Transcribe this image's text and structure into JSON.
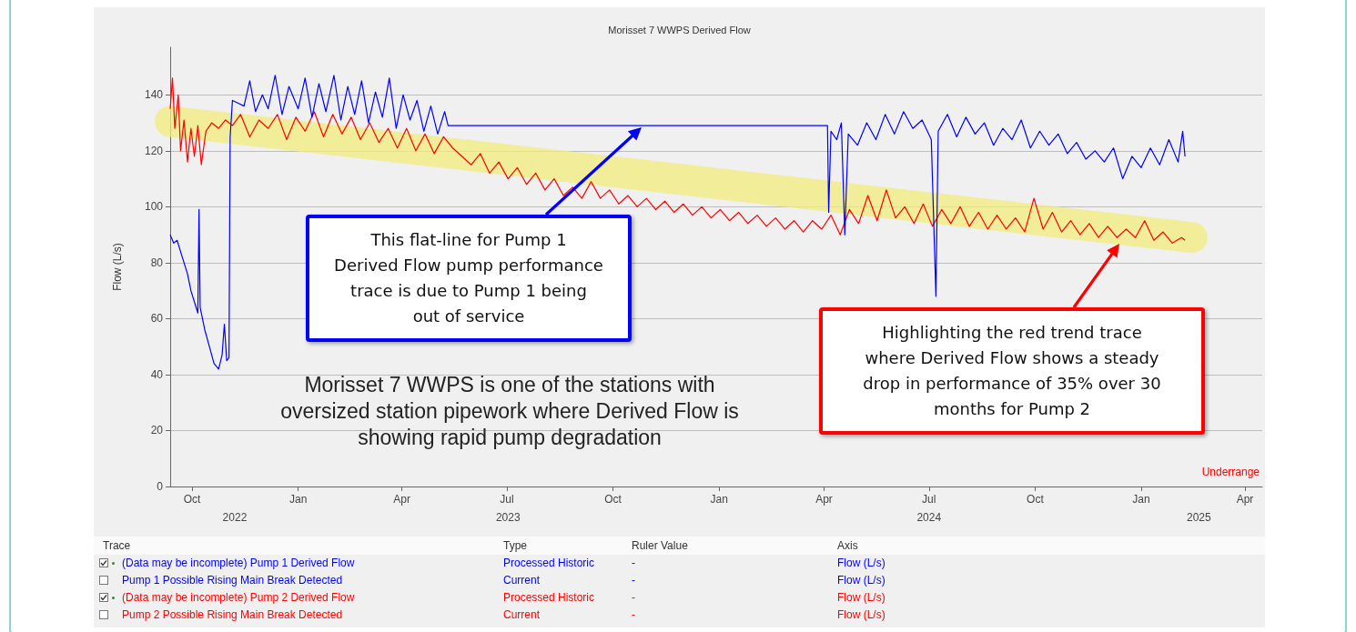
{
  "chart_data": {
    "type": "line",
    "title": "Morisset 7 WWPS Derived Flow",
    "ylabel": "Flow (L/s)",
    "xlim": [
      "2022-09-12",
      "2025-04-16"
    ],
    "xticks": [
      {
        "value": "2022-10-01",
        "label": "Oct"
      },
      {
        "value": "2023-01-01",
        "label": "Jan"
      },
      {
        "value": "2023-04-01",
        "label": "Apr"
      },
      {
        "value": "2023-07-01",
        "label": "Jul"
      },
      {
        "value": "2023-10-01",
        "label": "Oct"
      },
      {
        "value": "2024-01-01",
        "label": "Jan"
      },
      {
        "value": "2024-04-01",
        "label": "Apr"
      },
      {
        "value": "2024-07-01",
        "label": "Jul"
      },
      {
        "value": "2024-10-01",
        "label": "Oct"
      },
      {
        "value": "2025-01-01",
        "label": "Jan"
      },
      {
        "value": "2025-04-01",
        "label": "Apr"
      }
    ],
    "x2lim": [
      "2022-09-12",
      "2025-04-16"
    ],
    "x2ticks": [
      {
        "value": "2022-11-07",
        "label": "2022"
      },
      {
        "value": "2023-07-02",
        "label": "2023"
      },
      {
        "value": "2024-07-01",
        "label": "2024"
      },
      {
        "value": "2025-02-20",
        "label": "2025"
      }
    ],
    "ylim": [
      0,
      157
    ],
    "yticks": [
      0,
      20,
      40,
      60,
      80,
      100,
      120,
      140
    ],
    "grid": "y",
    "legend": "bottom",
    "marker": "none",
    "line_style": "solid",
    "series": [
      {
        "name": "(Data may be incomplete) Pump 1 Derived Flow",
        "color": "#0000ff",
        "x": [
          "2022-09-12",
          "2022-09-15",
          "2022-09-18",
          "2022-09-21",
          "2022-09-24",
          "2022-09-27",
          "2022-09-30",
          "2022-10-03",
          "2022-10-06",
          "2022-10-07",
          "2022-10-08",
          "2022-10-12",
          "2022-10-16",
          "2022-10-20",
          "2022-10-24",
          "2022-10-27",
          "2022-10-29",
          "2022-10-31",
          "2022-11-02",
          "2022-11-03",
          "2022-11-05",
          "2022-11-10",
          "2022-11-15",
          "2022-11-20",
          "2022-11-25",
          "2022-12-01",
          "2022-12-06",
          "2022-12-12",
          "2022-12-18",
          "2022-12-24",
          "2023-01-01",
          "2023-01-07",
          "2023-01-13",
          "2023-01-19",
          "2023-01-25",
          "2023-02-01",
          "2023-02-07",
          "2023-02-13",
          "2023-02-19",
          "2023-02-25",
          "2023-03-03",
          "2023-03-09",
          "2023-03-15",
          "2023-03-21",
          "2023-03-27",
          "2023-04-02",
          "2023-04-08",
          "2023-04-14",
          "2023-04-20",
          "2023-04-26",
          "2023-05-02",
          "2023-05-08",
          "2023-05-11",
          "2024-04-04",
          "2024-04-05",
          "2024-04-07",
          "2024-04-12",
          "2024-04-16",
          "2024-04-19",
          "2024-04-22",
          "2024-04-30",
          "2024-05-08",
          "2024-05-16",
          "2024-05-24",
          "2024-06-01",
          "2024-06-09",
          "2024-06-17",
          "2024-06-25",
          "2024-07-03",
          "2024-07-07",
          "2024-07-09",
          "2024-07-17",
          "2024-07-25",
          "2024-08-02",
          "2024-08-10",
          "2024-08-18",
          "2024-08-26",
          "2024-09-03",
          "2024-09-11",
          "2024-09-19",
          "2024-09-27",
          "2024-10-05",
          "2024-10-13",
          "2024-10-21",
          "2024-10-29",
          "2024-11-06",
          "2024-11-14",
          "2024-11-22",
          "2024-11-30",
          "2024-12-08",
          "2024-12-16",
          "2024-12-24",
          "2025-01-01",
          "2025-01-09",
          "2025-01-17",
          "2025-01-25",
          "2025-02-02",
          "2025-02-06",
          "2025-02-08"
        ],
        "values": [
          90,
          87,
          88,
          84,
          80,
          76,
          70,
          66,
          62,
          99,
          64,
          56,
          50,
          44,
          42,
          47,
          58,
          45,
          46,
          125,
          138,
          137,
          136,
          145,
          134,
          140,
          135,
          147,
          133,
          143,
          135,
          146,
          132,
          144,
          134,
          147,
          131,
          143,
          133,
          145,
          130,
          141,
          132,
          146,
          128,
          140,
          131,
          138,
          127,
          136,
          126,
          134,
          129,
          129,
          98,
          127,
          124,
          130,
          90,
          126,
          122,
          130,
          124,
          133,
          126,
          134,
          128,
          131,
          124,
          68,
          127,
          133,
          125,
          132,
          126,
          130,
          122,
          128,
          124,
          131,
          121,
          127,
          122,
          126,
          119,
          123,
          117,
          120,
          116,
          121,
          110,
          118,
          114,
          121,
          115,
          124,
          116,
          127,
          118
        ]
      },
      {
        "name": "Pump 1 Possible Rising Main Break Detected"
      },
      {
        "name": "(Data may be incomplete) Pump 2 Derived Flow",
        "color": "#ff0000",
        "x": [
          "2022-09-12",
          "2022-09-14",
          "2022-09-16",
          "2022-09-19",
          "2022-09-21",
          "2022-09-24",
          "2022-09-27",
          "2022-09-30",
          "2022-10-03",
          "2022-10-06",
          "2022-10-09",
          "2022-10-13",
          "2022-10-18",
          "2022-10-24",
          "2022-10-30",
          "2022-11-05",
          "2022-11-12",
          "2022-11-20",
          "2022-11-28",
          "2022-12-06",
          "2022-12-14",
          "2022-12-22",
          "2022-12-30",
          "2023-01-07",
          "2023-01-15",
          "2023-01-23",
          "2023-01-31",
          "2023-02-08",
          "2023-02-16",
          "2023-02-24",
          "2023-03-04",
          "2023-03-12",
          "2023-03-20",
          "2023-03-28",
          "2023-04-05",
          "2023-04-13",
          "2023-04-21",
          "2023-04-29",
          "2023-05-07",
          "2023-05-15",
          "2023-05-23",
          "2023-05-31",
          "2023-06-08",
          "2023-06-16",
          "2023-06-24",
          "2023-07-02",
          "2023-07-10",
          "2023-07-18",
          "2023-07-26",
          "2023-08-03",
          "2023-08-11",
          "2023-08-19",
          "2023-08-27",
          "2023-09-04",
          "2023-09-12",
          "2023-09-20",
          "2023-09-28",
          "2023-10-06",
          "2023-10-14",
          "2023-10-22",
          "2023-10-30",
          "2023-11-07",
          "2023-11-15",
          "2023-11-23",
          "2023-12-01",
          "2023-12-09",
          "2023-12-17",
          "2023-12-25",
          "2024-01-02",
          "2024-01-10",
          "2024-01-18",
          "2024-01-26",
          "2024-02-03",
          "2024-02-11",
          "2024-02-19",
          "2024-02-27",
          "2024-03-06",
          "2024-03-14",
          "2024-03-22",
          "2024-03-30",
          "2024-04-07",
          "2024-04-15",
          "2024-04-23",
          "2024-05-01",
          "2024-05-09",
          "2024-05-17",
          "2024-05-25",
          "2024-06-02",
          "2024-06-10",
          "2024-06-18",
          "2024-06-26",
          "2024-07-04",
          "2024-07-12",
          "2024-07-20",
          "2024-07-28",
          "2024-08-05",
          "2024-08-13",
          "2024-08-21",
          "2024-08-29",
          "2024-09-06",
          "2024-09-14",
          "2024-09-22",
          "2024-09-30",
          "2024-10-08",
          "2024-10-16",
          "2024-10-24",
          "2024-11-01",
          "2024-11-09",
          "2024-11-17",
          "2024-11-25",
          "2024-12-03",
          "2024-12-11",
          "2024-12-19",
          "2024-12-27",
          "2025-01-04",
          "2025-01-12",
          "2025-01-20",
          "2025-01-28",
          "2025-02-05",
          "2025-02-08"
        ],
        "values": [
          135,
          146,
          128,
          140,
          120,
          131,
          116,
          128,
          118,
          129,
          115,
          127,
          130,
          128,
          131,
          129,
          133,
          125,
          131,
          128,
          133,
          124,
          132,
          127,
          134,
          125,
          133,
          126,
          132,
          124,
          130,
          123,
          128,
          121,
          128,
          120,
          126,
          119,
          125,
          121,
          118,
          115,
          119,
          112,
          116,
          110,
          114,
          108,
          112,
          106,
          110,
          104,
          107,
          103,
          109,
          103,
          106,
          101,
          104,
          100,
          103,
          99,
          102,
          98,
          101,
          97,
          100,
          96,
          99,
          95,
          98,
          94,
          97,
          93,
          96,
          92,
          95,
          91,
          95,
          92,
          97,
          90,
          99,
          94,
          104,
          95,
          106,
          96,
          100,
          94,
          101,
          93,
          99,
          94,
          100,
          93,
          98,
          92,
          97,
          92,
          96,
          91,
          103,
          92,
          98,
          91,
          95,
          90,
          94,
          89,
          93,
          89,
          92,
          89,
          95,
          88,
          91,
          87,
          89,
          88
        ]
      },
      {
        "name": "Pump 2 Possible Rising Main Break Detected"
      },
      {
        "color": "#f2ec7c",
        "x": [
          "2022-09-12",
          "2025-02-14"
        ],
        "values": [
          130.5,
          89
        ]
      }
    ],
    "annotations": [
      "This flat-line for Pump 1 Derived Flow pump performance trace is due to Pump 1 being out of service",
      "Highlighting the red trend trace where Derived Flow shows a steady drop in performance of 35% over 30 months for Pump 2",
      "Morisset 7 WWPS is one of the stations with oversized station pipework where Derived Flow is showing rapid pump degradation",
      "Underrange",
      "Trace",
      "Type",
      "Ruler Value",
      "Axis",
      "Processed Historic",
      "-",
      "Flow (L/s)",
      "Current",
      "-",
      "Flow (L/s)",
      "Processed Historic",
      "-",
      "Flow (L/s)",
      "Current",
      "-",
      "Flow (L/s)"
    ]
  }
}
